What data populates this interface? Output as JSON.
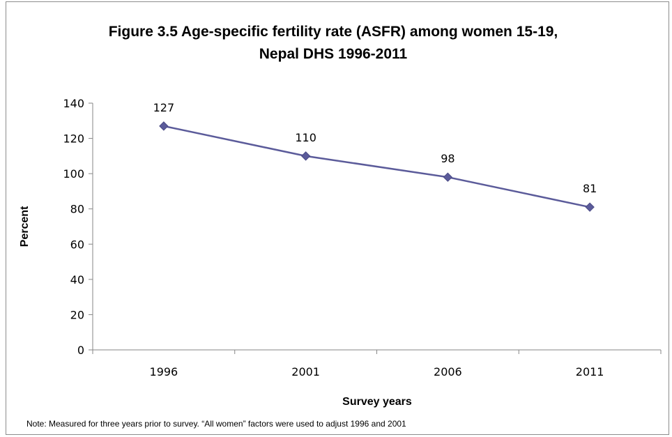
{
  "chart_data": {
    "type": "line",
    "title": "Figure 3.5 Age-specific fertility rate (ASFR) among women 15-19,",
    "subtitle": "Nepal DHS 1996-2011",
    "xlabel": "Survey years",
    "ylabel": "Percent",
    "categories": [
      "1996",
      "2001",
      "2006",
      "2011"
    ],
    "series": [
      {
        "values": [
          127,
          110,
          98,
          81
        ],
        "color": "#5b5b9a"
      }
    ],
    "data_labels": [
      "127",
      "110",
      "98",
      "81"
    ],
    "ylim": [
      0,
      140
    ],
    "y_ticks": [
      "0",
      "20",
      "40",
      "60",
      "80",
      "100",
      "120",
      "140"
    ],
    "grid": false,
    "legend": "none",
    "marker": "diamond"
  },
  "note": "Note: Measured for three years prior to survey. “All women” factors were used to adjust 1996 and 2001"
}
